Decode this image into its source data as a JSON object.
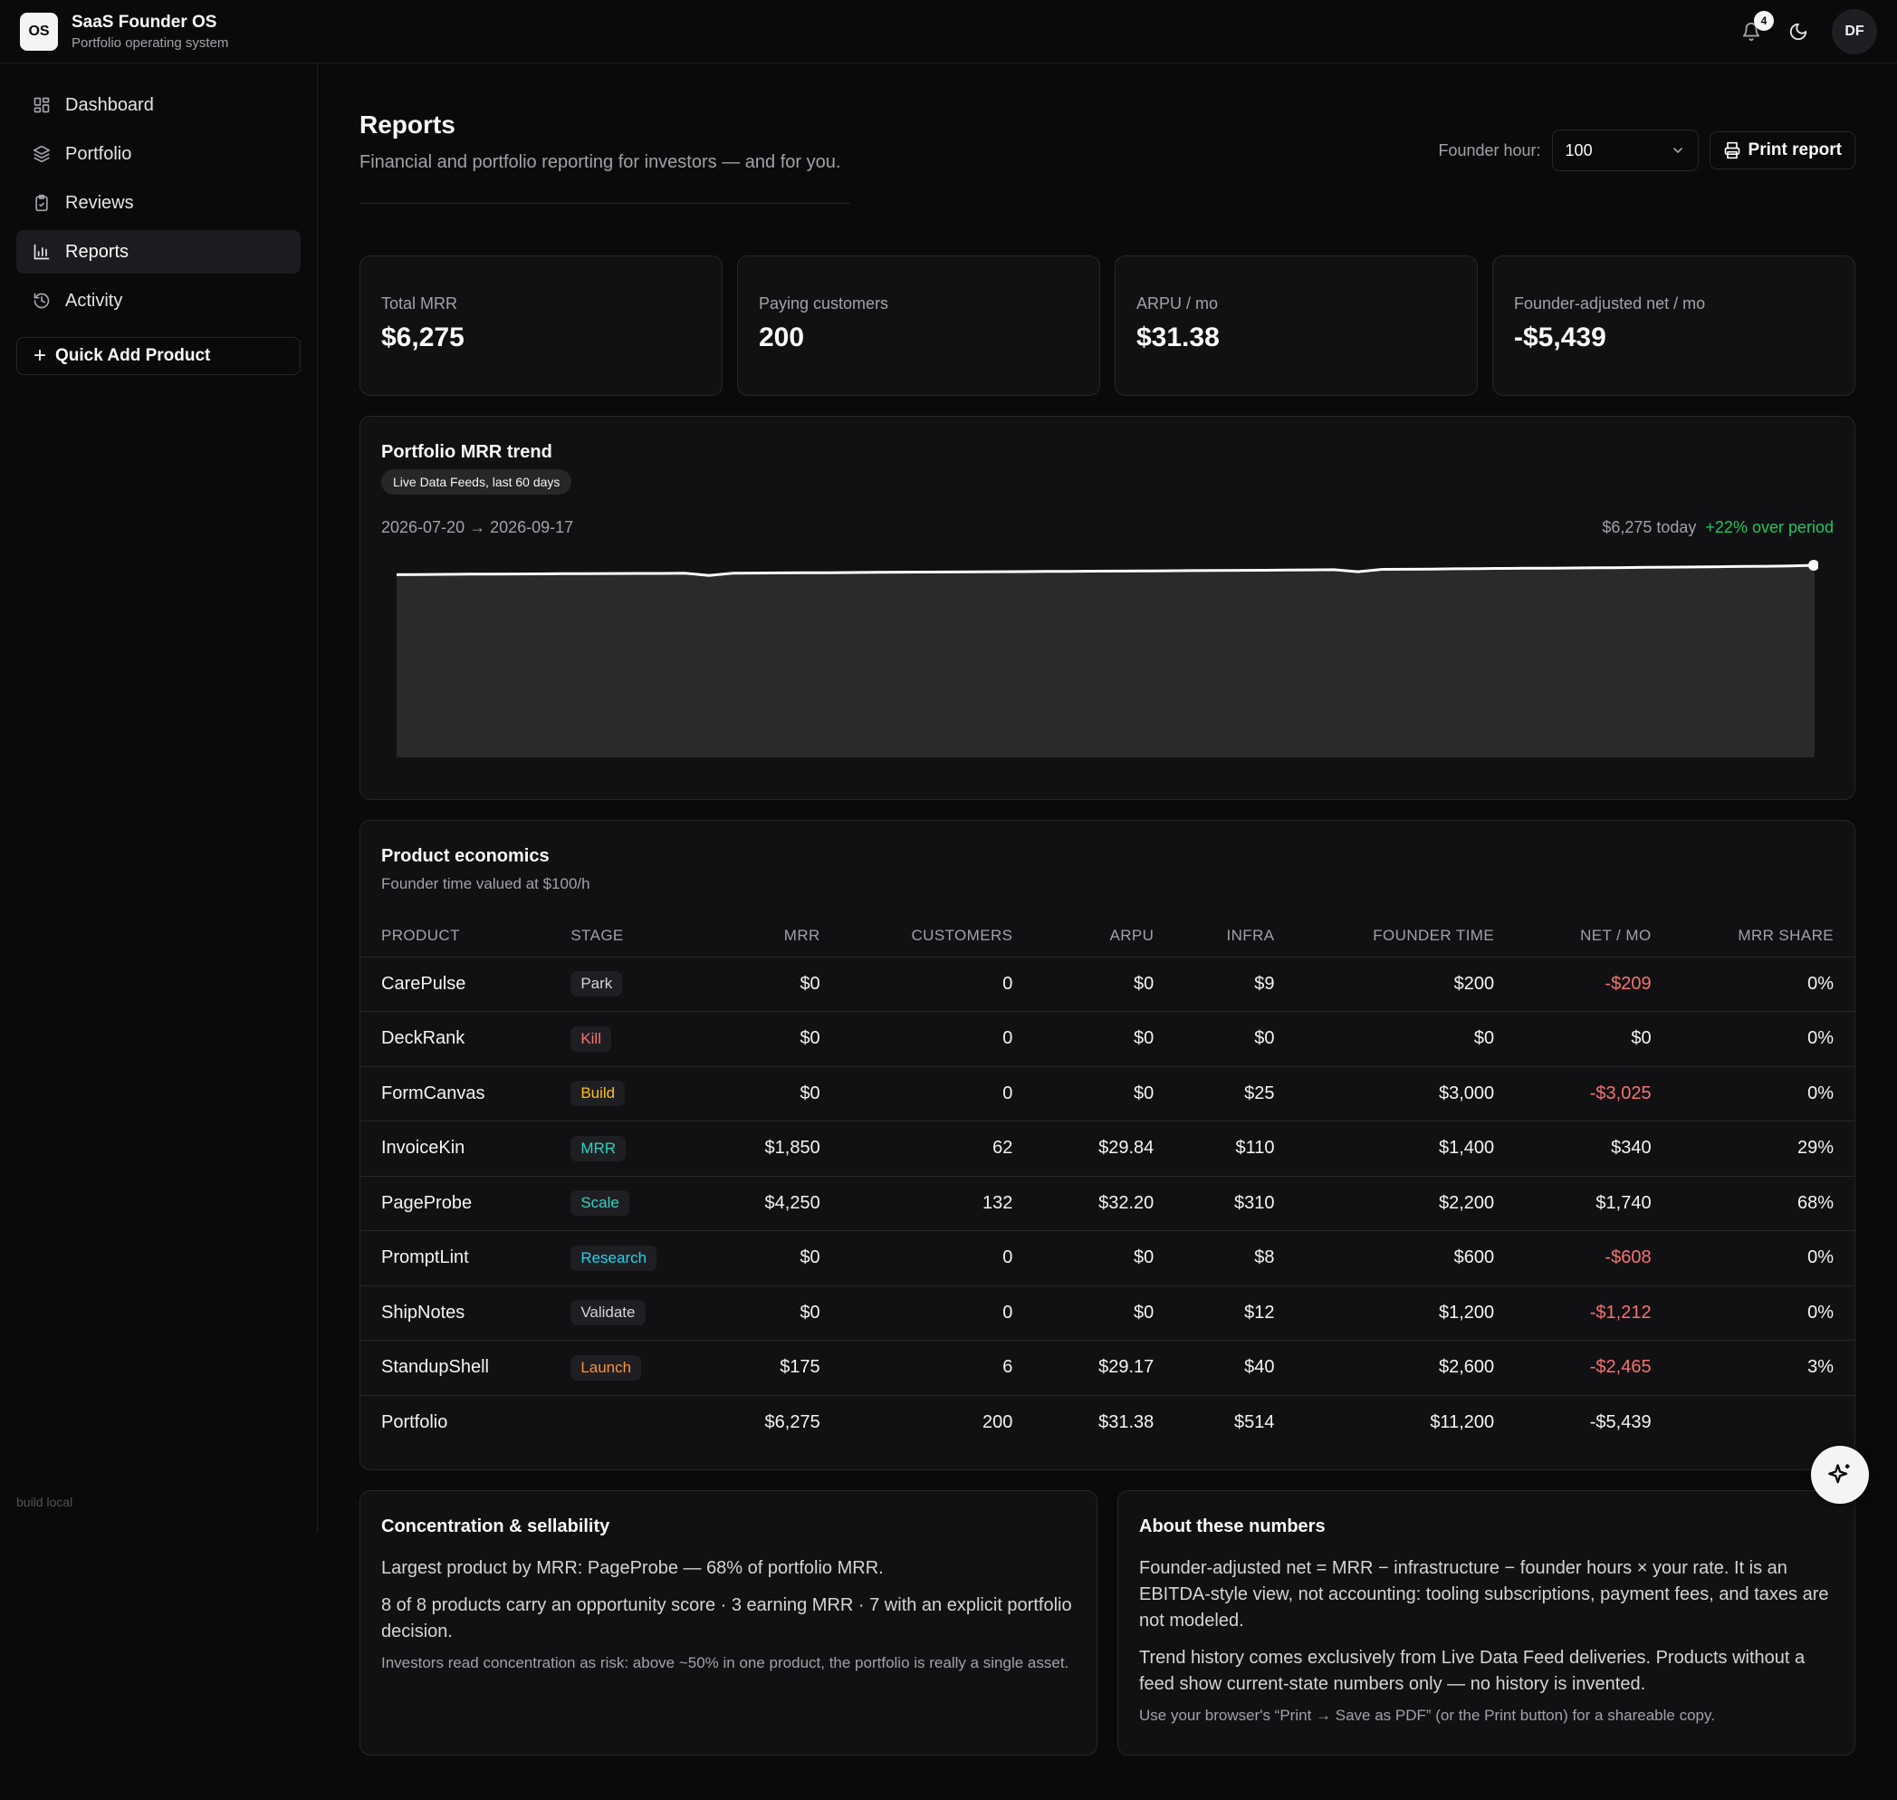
{
  "app": {
    "logo": "OS",
    "title": "SaaS Founder OS",
    "subtitle": "Portfolio operating system",
    "notifications_count": "4",
    "user_initials": "DF"
  },
  "sidebar": {
    "items": [
      {
        "label": "Dashboard",
        "icon": "dashboard-icon"
      },
      {
        "label": "Portfolio",
        "icon": "layers-icon"
      },
      {
        "label": "Reviews",
        "icon": "clipboard-icon"
      },
      {
        "label": "Reports",
        "icon": "bar-chart-icon",
        "active": true
      },
      {
        "label": "Activity",
        "icon": "history-icon"
      }
    ],
    "quick_add": "Quick Add Product",
    "build": "build local"
  },
  "page": {
    "title": "Reports",
    "subtitle": "Financial and portfolio reporting for investors — and for you.",
    "founder_hour_label": "Founder hour:",
    "founder_hour_value": "100",
    "print_label": "Print report"
  },
  "kpis": [
    {
      "label": "Total MRR",
      "value": "$6,275"
    },
    {
      "label": "Paying customers",
      "value": "200"
    },
    {
      "label": "ARPU / mo",
      "value": "$31.38"
    },
    {
      "label": "Founder-adjusted net / mo",
      "value": "-$5,439"
    }
  ],
  "trend": {
    "title": "Portfolio MRR trend",
    "pill": "Live Data Feeds, last 60 days",
    "range": "2026-07-20 → 2026-09-17",
    "today": "$6,275 today",
    "change": "+22% over period",
    "colors": {
      "line": "#ffffff",
      "area": "#2a2a2d",
      "positive": "#22c55e"
    }
  },
  "chart_data": {
    "type": "area",
    "x_start": "2026-07-20",
    "x_end": "2026-09-17",
    "values": [
      5143,
      5160,
      5180,
      5200,
      5215,
      5230,
      5240,
      5255,
      5270,
      5280,
      5290,
      5295,
      5310,
      5050,
      5320,
      5340,
      5355,
      5370,
      5385,
      5400,
      5420,
      5440,
      5455,
      5470,
      5485,
      5500,
      5515,
      5530,
      5545,
      5560,
      5575,
      5590,
      5610,
      5630,
      5650,
      5665,
      5680,
      5700,
      5720,
      5740,
      5500,
      5780,
      5800,
      5820,
      5845,
      5870,
      5890,
      5910,
      5930,
      5950,
      5970,
      5995,
      6020,
      6045,
      6070,
      6100,
      6130,
      6160,
      6200,
      6275
    ]
  },
  "economics": {
    "title": "Product economics",
    "subtitle": "Founder time valued at $100/h",
    "columns": [
      "Product",
      "Stage",
      "MRR",
      "Customers",
      "ARPU",
      "Infra",
      "Founder time",
      "Net / mo",
      "MRR share"
    ],
    "rows": [
      {
        "product": "CarePulse",
        "stage": "Park",
        "stage_color": "#d4d4d8",
        "mrr": "$0",
        "customers": "0",
        "arpu": "$0",
        "infra": "$9",
        "founder_time": "$200",
        "net": "-$209",
        "neg": true,
        "share": "0%"
      },
      {
        "product": "DeckRank",
        "stage": "Kill",
        "stage_color": "#f87171",
        "mrr": "$0",
        "customers": "0",
        "arpu": "$0",
        "infra": "$0",
        "founder_time": "$0",
        "net": "$0",
        "neg": false,
        "share": "0%"
      },
      {
        "product": "FormCanvas",
        "stage": "Build",
        "stage_color": "#fbbf24",
        "mrr": "$0",
        "customers": "0",
        "arpu": "$0",
        "infra": "$25",
        "founder_time": "$3,000",
        "net": "-$3,025",
        "neg": true,
        "share": "0%"
      },
      {
        "product": "InvoiceKin",
        "stage": "MRR",
        "stage_color": "#2dd4bf",
        "mrr": "$1,850",
        "customers": "62",
        "arpu": "$29.84",
        "infra": "$110",
        "founder_time": "$1,400",
        "net": "$340",
        "neg": false,
        "share": "29%"
      },
      {
        "product": "PageProbe",
        "stage": "Scale",
        "stage_color": "#2dd4bf",
        "mrr": "$4,250",
        "customers": "132",
        "arpu": "$32.20",
        "infra": "$310",
        "founder_time": "$2,200",
        "net": "$1,740",
        "neg": false,
        "share": "68%"
      },
      {
        "product": "PromptLint",
        "stage": "Research",
        "stage_color": "#22d3ee",
        "mrr": "$0",
        "customers": "0",
        "arpu": "$0",
        "infra": "$8",
        "founder_time": "$600",
        "net": "-$608",
        "neg": true,
        "share": "0%"
      },
      {
        "product": "ShipNotes",
        "stage": "Validate",
        "stage_color": "#d4d4d8",
        "mrr": "$0",
        "customers": "0",
        "arpu": "$0",
        "infra": "$12",
        "founder_time": "$1,200",
        "net": "-$1,212",
        "neg": true,
        "share": "0%"
      },
      {
        "product": "StandupShell",
        "stage": "Launch",
        "stage_color": "#fb923c",
        "mrr": "$175",
        "customers": "6",
        "arpu": "$29.17",
        "infra": "$40",
        "founder_time": "$2,600",
        "net": "-$2,465",
        "neg": true,
        "share": "3%"
      }
    ],
    "total": {
      "product": "Portfolio",
      "mrr": "$6,275",
      "customers": "200",
      "arpu": "$31.38",
      "infra": "$514",
      "founder_time": "$11,200",
      "net": "-$5,439",
      "share": ""
    }
  },
  "concentration": {
    "title": "Concentration & sellability",
    "p1": "Largest product by MRR: PageProbe — 68% of portfolio MRR.",
    "p2": "8 of 8 products carry an opportunity score · 3 earning MRR · 7 with an explicit portfolio decision.",
    "p3": "Investors read concentration as risk: above ~50% in one product, the portfolio is really a single asset."
  },
  "about": {
    "title": "About these numbers",
    "p1": "Founder-adjusted net = MRR − infrastructure − founder hours × your rate. It is an EBITDA-style view, not accounting: tooling subscriptions, payment fees, and taxes are not modeled.",
    "p2": "Trend history comes exclusively from Live Data Feed deliveries. Products without a feed show current-state numbers only — no history is invented.",
    "p3": "Use your browser's “Print → Save as PDF” (or the Print button) for a shareable copy."
  }
}
